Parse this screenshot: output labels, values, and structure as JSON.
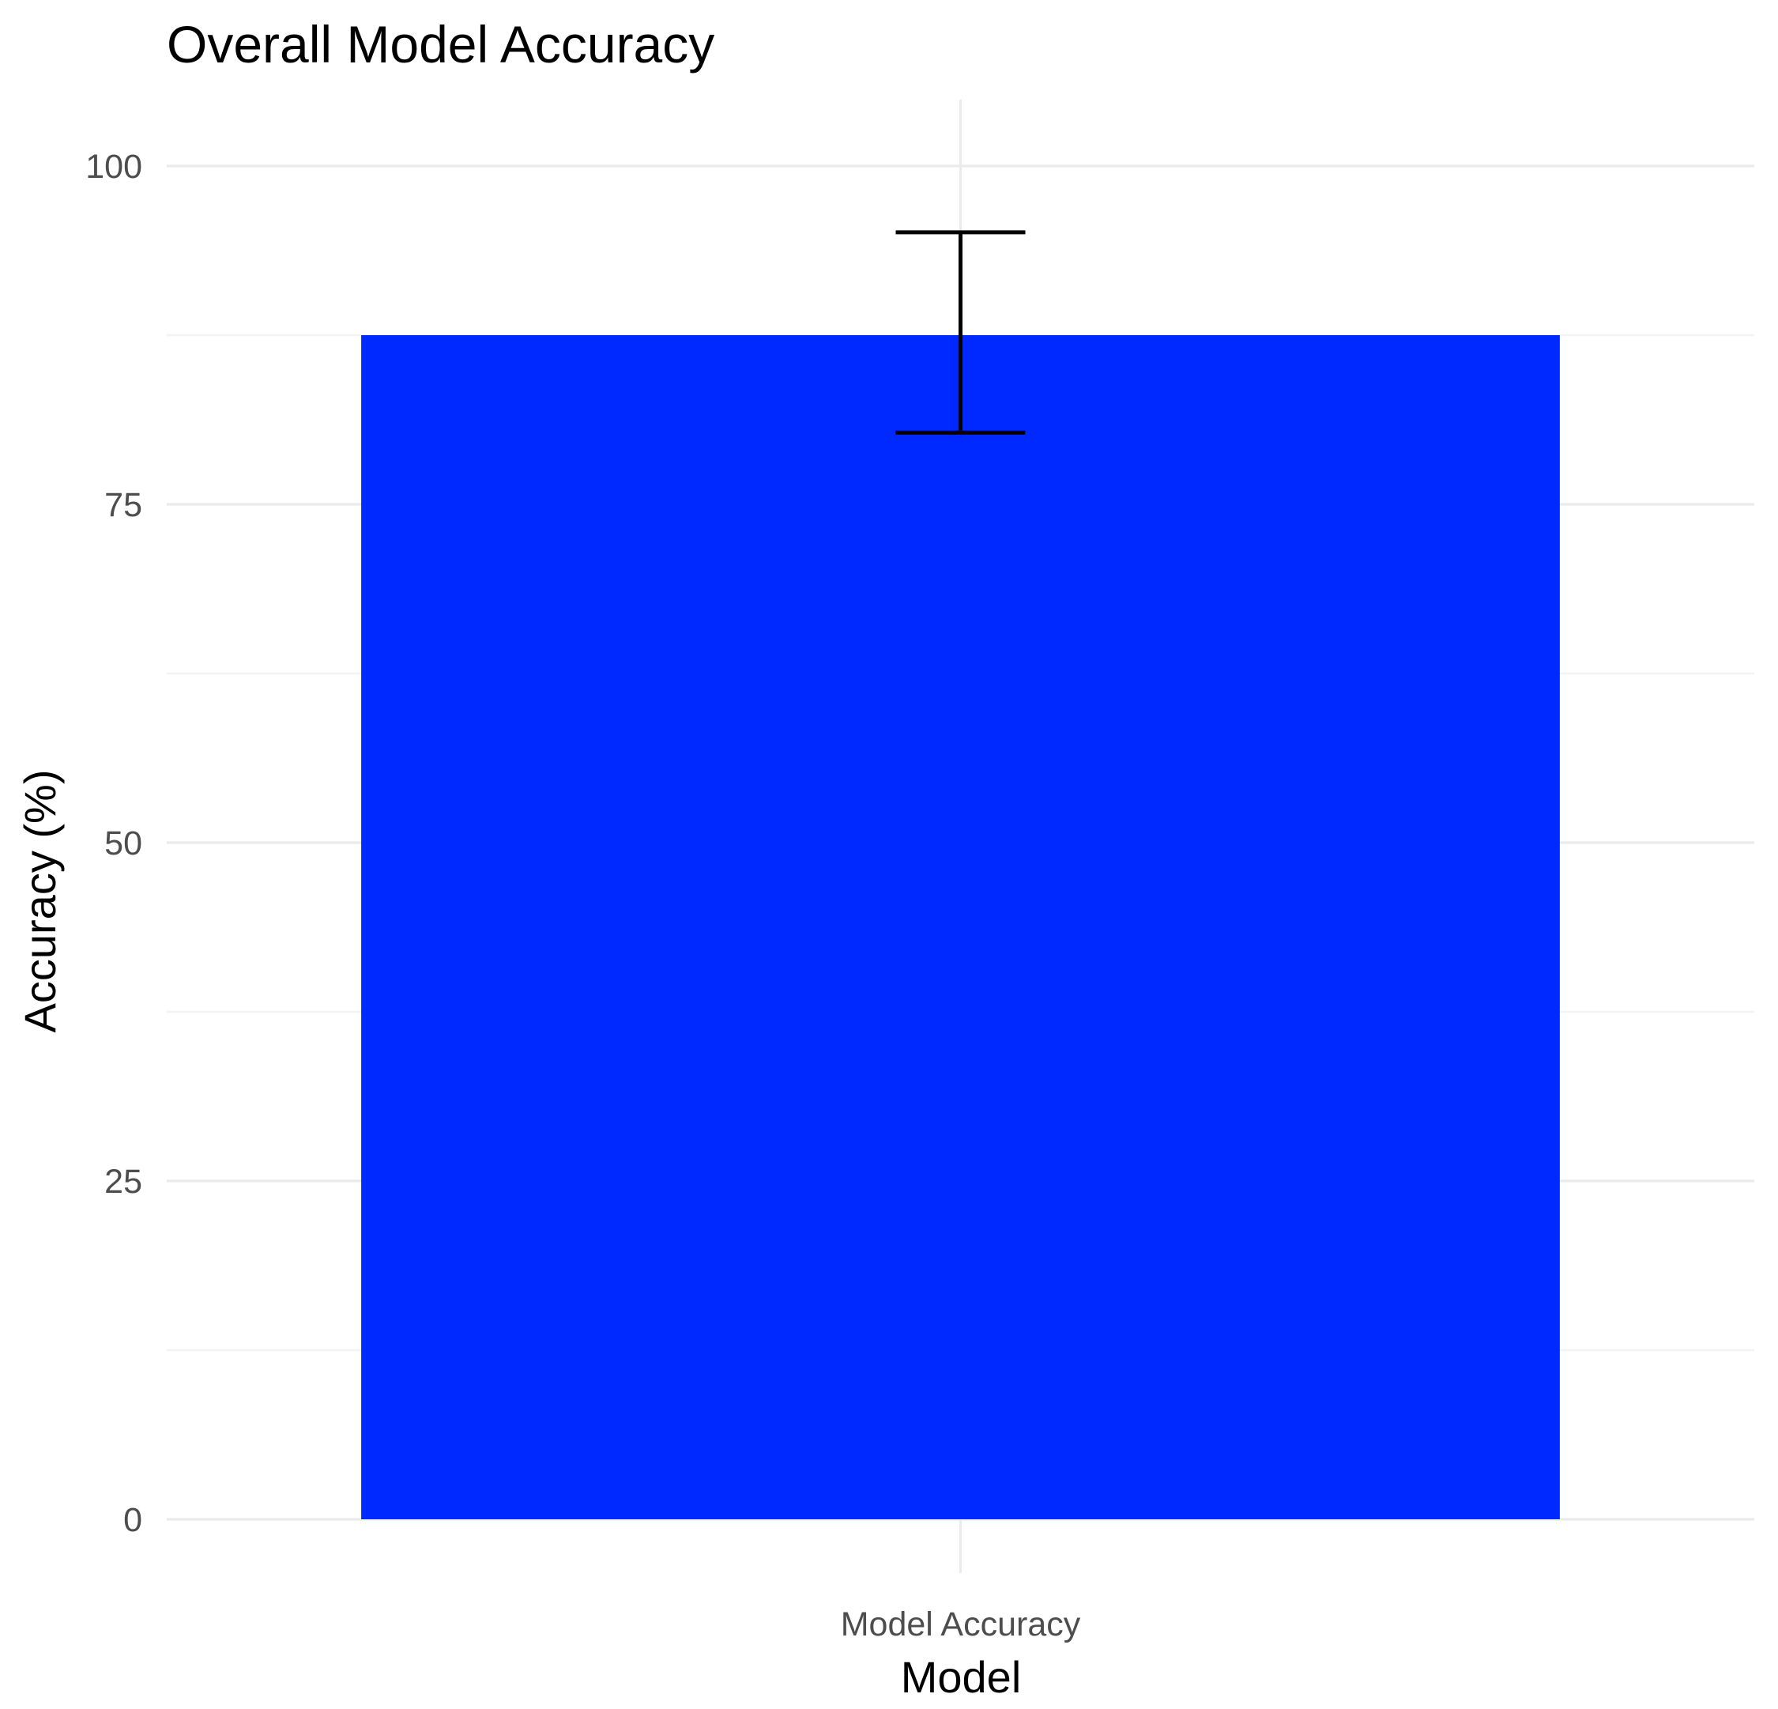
{
  "chart_data": {
    "type": "bar",
    "title": "Overall Model Accuracy",
    "xlabel": "Model",
    "ylabel": "Accuracy (%)",
    "categories": [
      "Model Accuracy"
    ],
    "values": [
      87.5
    ],
    "error_bars": [
      {
        "lower": 80.3,
        "upper": 95.1
      }
    ],
    "ylim": [
      0,
      100
    ],
    "yticks": [
      0,
      25,
      50,
      75,
      100
    ],
    "ytick_labels": [
      "0",
      "25",
      "50",
      "75",
      "100"
    ],
    "grid": true,
    "legend": "none",
    "colors": {
      "bar": "#0029ff",
      "error_bar": "#000000",
      "grid": "#ebebeb",
      "background": "#ffffff"
    }
  }
}
